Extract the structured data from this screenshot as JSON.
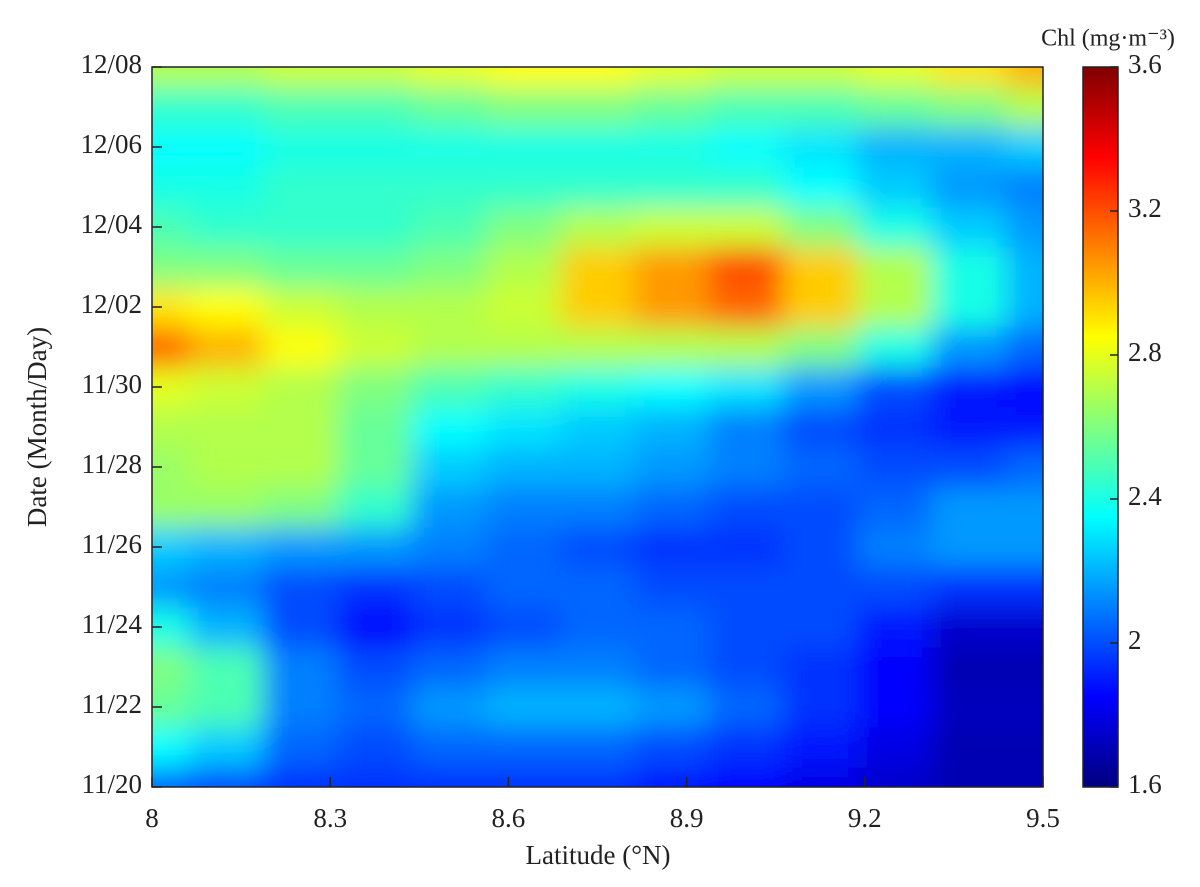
{
  "chart_data": {
    "type": "contour",
    "xlabel": "Latitude (°N)",
    "ylabel": "Date (Month/Day)",
    "colorbar_label": "Chl (mg·m⁻³)",
    "x": [
      8,
      8.125,
      8.25,
      8.375,
      8.5,
      8.625,
      8.75,
      8.875,
      9,
      9.125,
      9.25,
      9.375,
      9.5
    ],
    "y": [
      "11/20",
      "11/21",
      "11/22",
      "11/23",
      "11/24",
      "11/25",
      "11/26",
      "11/27",
      "11/28",
      "11/29",
      "11/30",
      "12/01",
      "12/02",
      "12/03",
      "12/04",
      "12/05",
      "12/06",
      "12/07",
      "12/08"
    ],
    "z": [
      [
        2.05,
        2.0,
        1.95,
        1.95,
        1.95,
        1.95,
        1.95,
        1.9,
        1.85,
        1.8,
        1.75,
        1.7,
        1.7
      ],
      [
        2.35,
        2.25,
        2.05,
        2.0,
        2.05,
        2.05,
        2.05,
        2.0,
        1.95,
        1.9,
        1.8,
        1.7,
        1.7
      ],
      [
        2.55,
        2.5,
        2.1,
        2.05,
        2.15,
        2.2,
        2.2,
        2.15,
        2.05,
        1.95,
        1.85,
        1.72,
        1.72
      ],
      [
        2.6,
        2.5,
        2.1,
        2.0,
        2.05,
        2.1,
        2.1,
        2.05,
        2.0,
        1.95,
        1.85,
        1.7,
        1.7
      ],
      [
        2.4,
        2.2,
        2.0,
        1.85,
        1.95,
        2.0,
        2.05,
        2.05,
        2.0,
        2.0,
        1.9,
        1.75,
        1.75
      ],
      [
        2.15,
        2.1,
        2.0,
        1.95,
        2.0,
        2.05,
        2.05,
        2.0,
        2.0,
        2.0,
        2.0,
        1.95,
        1.95
      ],
      [
        2.25,
        2.2,
        2.15,
        2.15,
        2.1,
        2.05,
        2.0,
        1.95,
        1.95,
        2.0,
        2.1,
        2.15,
        2.15
      ],
      [
        2.65,
        2.65,
        2.6,
        2.45,
        2.15,
        2.1,
        2.1,
        2.05,
        2.0,
        2.0,
        2.05,
        2.15,
        2.15
      ],
      [
        2.65,
        2.7,
        2.7,
        2.55,
        2.25,
        2.2,
        2.2,
        2.15,
        2.1,
        2.05,
        2.0,
        2.0,
        2.05
      ],
      [
        2.7,
        2.7,
        2.7,
        2.55,
        2.35,
        2.3,
        2.25,
        2.2,
        2.1,
        2.0,
        1.95,
        1.9,
        1.9
      ],
      [
        2.8,
        2.75,
        2.7,
        2.6,
        2.5,
        2.45,
        2.4,
        2.35,
        2.3,
        2.15,
        2.0,
        1.9,
        1.85
      ],
      [
        3.15,
        3.0,
        2.85,
        2.75,
        2.7,
        2.7,
        2.7,
        2.7,
        2.7,
        2.6,
        2.4,
        2.15,
        2.05
      ],
      [
        2.9,
        2.85,
        2.75,
        2.7,
        2.7,
        2.75,
        2.95,
        3.05,
        3.15,
        2.95,
        2.7,
        2.4,
        2.2
      ],
      [
        2.6,
        2.6,
        2.55,
        2.55,
        2.6,
        2.7,
        2.95,
        3.05,
        3.2,
        2.95,
        2.7,
        2.4,
        2.2
      ],
      [
        2.5,
        2.45,
        2.45,
        2.45,
        2.5,
        2.6,
        2.7,
        2.75,
        2.75,
        2.6,
        2.4,
        2.25,
        2.15
      ],
      [
        2.4,
        2.4,
        2.45,
        2.45,
        2.45,
        2.45,
        2.45,
        2.45,
        2.45,
        2.35,
        2.25,
        2.15,
        2.1
      ],
      [
        2.35,
        2.35,
        2.4,
        2.4,
        2.4,
        2.4,
        2.4,
        2.4,
        2.35,
        2.3,
        2.2,
        2.2,
        2.25
      ],
      [
        2.45,
        2.45,
        2.5,
        2.5,
        2.55,
        2.6,
        2.6,
        2.55,
        2.5,
        2.5,
        2.55,
        2.6,
        2.7
      ],
      [
        2.7,
        2.7,
        2.75,
        2.75,
        2.8,
        2.85,
        2.85,
        2.8,
        2.75,
        2.75,
        2.8,
        2.9,
        3.0
      ]
    ],
    "xlim": [
      8,
      9.5
    ],
    "xticks": [
      8,
      8.3,
      8.6,
      8.9,
      9.2,
      9.5
    ],
    "ylim": [
      "11/20",
      "12/08"
    ],
    "yticks": [
      "11/20",
      "11/22",
      "11/24",
      "11/26",
      "11/28",
      "11/30",
      "12/02",
      "12/04",
      "12/06",
      "12/08"
    ],
    "colormap": "jet",
    "clim": [
      1.6,
      3.6
    ],
    "cticks": [
      1.6,
      2,
      2.4,
      2.8,
      3.2,
      3.6
    ]
  }
}
